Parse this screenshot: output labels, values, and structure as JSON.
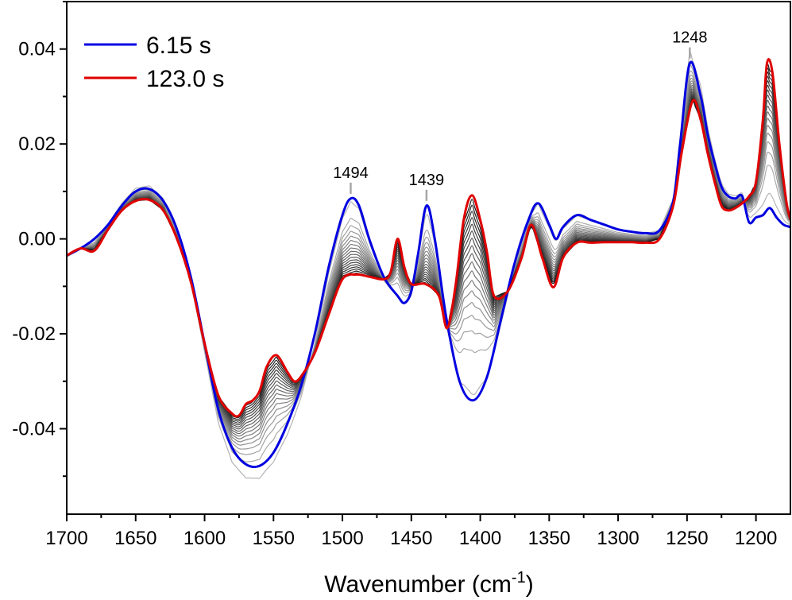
{
  "chart_data": {
    "type": "line",
    "title": "",
    "xlabel": "Wavenumber (cm",
    "xlabel_sup": "-1",
    "xlabel_close": ")",
    "ylabel": "",
    "xlim": [
      1700,
      1175
    ],
    "ylim": [
      -0.058,
      0.05
    ],
    "x_reversed": true,
    "grid": false,
    "legend_position": "top-left",
    "x_ticks": [
      1700,
      1650,
      1600,
      1550,
      1500,
      1450,
      1400,
      1350,
      1300,
      1250,
      1200
    ],
    "x_tick_labels": [
      "1700",
      "1650",
      "1600",
      "1550",
      "1500",
      "1450",
      "1400",
      "1350",
      "1300",
      "1250",
      "1200"
    ],
    "y_ticks": [
      0.04,
      0.02,
      0.0,
      -0.02,
      -0.04
    ],
    "y_tick_labels": [
      "0.04",
      "0.02",
      "0.00",
      "-0.02",
      "-0.04"
    ],
    "annotations": [
      {
        "label": "1494",
        "x": 1494,
        "y": 0.0085
      },
      {
        "label": "1439",
        "x": 1439,
        "y": 0.007
      },
      {
        "label": "1248",
        "x": 1248,
        "y": 0.037
      }
    ],
    "intermediate_series_count": 18,
    "intermediate_colors": [
      "#b3b3b3",
      "#1a1a1a"
    ],
    "series": [
      {
        "name": "6.15 s",
        "color": "#0000e0",
        "x": [
          1700,
          1690,
          1680,
          1670,
          1660,
          1650,
          1640,
          1630,
          1620,
          1610,
          1600,
          1590,
          1580,
          1570,
          1560,
          1550,
          1540,
          1530,
          1520,
          1510,
          1500,
          1494,
          1488,
          1480,
          1470,
          1460,
          1455,
          1450,
          1445,
          1439,
          1433,
          1425,
          1415,
          1405,
          1395,
          1385,
          1375,
          1365,
          1358,
          1350,
          1345,
          1340,
          1330,
          1320,
          1310,
          1300,
          1290,
          1280,
          1270,
          1260,
          1255,
          1248,
          1240,
          1235,
          1230,
          1225,
          1220,
          1215,
          1210,
          1205,
          1200,
          1195,
          1190,
          1185,
          1180,
          1175
        ],
        "y": [
          -0.0035,
          -0.002,
          0.0,
          0.003,
          0.007,
          0.01,
          0.0105,
          0.008,
          0.002,
          -0.008,
          -0.022,
          -0.036,
          -0.044,
          -0.0475,
          -0.0478,
          -0.045,
          -0.039,
          -0.031,
          -0.02,
          -0.006,
          0.005,
          0.0085,
          0.007,
          -0.0005,
          -0.008,
          -0.012,
          -0.0135,
          -0.011,
          -0.003,
          0.007,
          0.0,
          -0.016,
          -0.03,
          -0.034,
          -0.029,
          -0.017,
          -0.005,
          0.004,
          0.0075,
          0.003,
          0.0,
          0.0025,
          0.005,
          0.004,
          0.003,
          0.002,
          0.0015,
          0.0012,
          0.0018,
          0.008,
          0.02,
          0.037,
          0.03,
          0.022,
          0.016,
          0.011,
          0.009,
          0.0085,
          0.009,
          0.0035,
          0.0045,
          0.005,
          0.0065,
          0.0045,
          0.003,
          0.0025
        ]
      },
      {
        "name": "123.0 s",
        "color": "#e00000",
        "x": [
          1700,
          1690,
          1680,
          1670,
          1660,
          1650,
          1640,
          1630,
          1620,
          1610,
          1600,
          1590,
          1580,
          1575,
          1570,
          1565,
          1560,
          1555,
          1548,
          1540,
          1535,
          1530,
          1520,
          1510,
          1500,
          1490,
          1480,
          1470,
          1465,
          1460,
          1455,
          1450,
          1440,
          1430,
          1424,
          1418,
          1412,
          1406,
          1400,
          1395,
          1390,
          1380,
          1370,
          1363,
          1355,
          1347,
          1340,
          1330,
          1320,
          1310,
          1300,
          1290,
          1280,
          1270,
          1260,
          1254,
          1246,
          1240,
          1235,
          1230,
          1225,
          1220,
          1215,
          1210,
          1205,
          1200,
          1195,
          1192,
          1188,
          1183,
          1178,
          1175
        ],
        "y": [
          -0.0035,
          -0.002,
          -0.0025,
          0.002,
          0.006,
          0.008,
          0.0082,
          0.006,
          0.0,
          -0.009,
          -0.022,
          -0.033,
          -0.0368,
          -0.0372,
          -0.0348,
          -0.034,
          -0.032,
          -0.027,
          -0.0245,
          -0.028,
          -0.03,
          -0.029,
          -0.024,
          -0.016,
          -0.0085,
          -0.0075,
          -0.008,
          -0.0085,
          -0.007,
          0.0,
          -0.006,
          -0.0095,
          -0.0095,
          -0.012,
          -0.0188,
          -0.01,
          0.004,
          0.0092,
          0.004,
          -0.003,
          -0.012,
          -0.011,
          -0.004,
          0.003,
          -0.004,
          -0.0102,
          -0.004,
          -0.0008,
          -0.0008,
          -0.0007,
          -0.0007,
          -0.0007,
          -0.0008,
          0.0,
          0.007,
          0.018,
          0.029,
          0.025,
          0.018,
          0.012,
          0.007,
          0.006,
          0.0065,
          0.0075,
          0.009,
          0.012,
          0.025,
          0.037,
          0.035,
          0.02,
          0.008,
          0.004
        ]
      }
    ]
  }
}
